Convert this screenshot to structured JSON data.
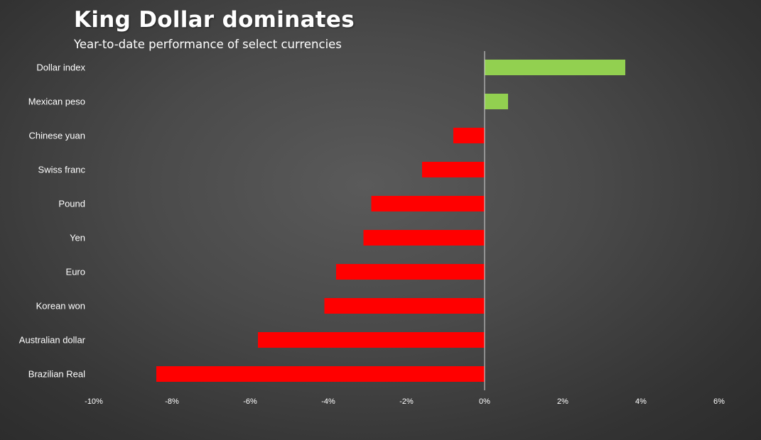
{
  "title": "King Dollar dominates",
  "subtitle": "Year-to-date performance of select currencies",
  "chart_data": {
    "type": "bar",
    "orientation": "horizontal",
    "categories": [
      "Dollar index",
      "Mexican peso",
      "Chinese yuan",
      "Swiss franc",
      "Pound",
      "Yen",
      "Euro",
      "Korean won",
      "Australian dollar",
      "Brazilian Real"
    ],
    "values": [
      3.6,
      0.6,
      -0.8,
      -1.6,
      -2.9,
      -3.1,
      -3.8,
      -4.1,
      -5.8,
      -8.4
    ],
    "xlim": [
      -10,
      6
    ],
    "xticks": [
      -10,
      -8,
      -6,
      -4,
      -2,
      0,
      2,
      4,
      6
    ],
    "xtick_labels": [
      "-10%",
      "-8%",
      "-6%",
      "-4%",
      "-2%",
      "0%",
      "2%",
      "4%",
      "6%"
    ],
    "colors": {
      "positive": "#92d050",
      "negative": "#ff0000",
      "zero_line": "#d9d9d9"
    },
    "grid": false,
    "legend": "none"
  }
}
